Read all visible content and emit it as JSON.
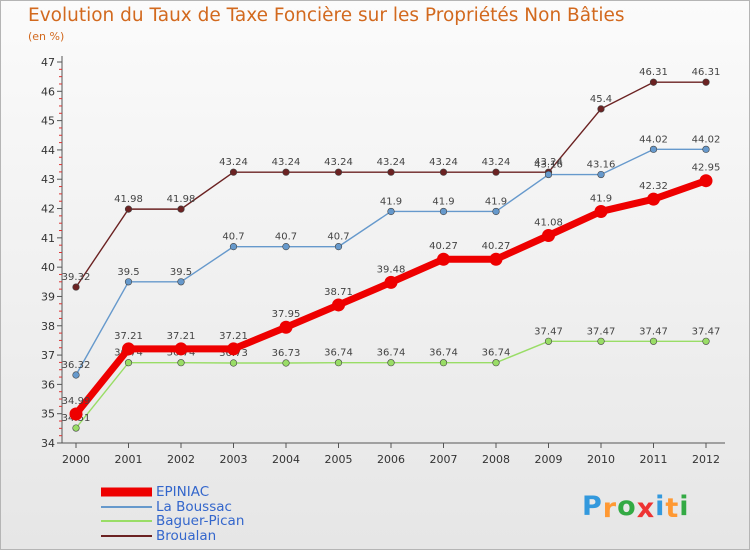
{
  "chart_data": {
    "type": "line",
    "title": "Evolution du Taux de Taxe Foncière sur les Propriétés Non Bâties",
    "subtitle": "(en %)",
    "x": [
      "2000",
      "2001",
      "2002",
      "2003",
      "2004",
      "2005",
      "2006",
      "2007",
      "2008",
      "2009",
      "2010",
      "2011",
      "2012"
    ],
    "ylim": [
      34,
      47
    ],
    "yticks": [
      "34",
      "35",
      "36",
      "37",
      "38",
      "39",
      "40",
      "41",
      "42",
      "43",
      "44",
      "45",
      "46",
      "47"
    ],
    "grid": false,
    "legend_position": "bottom-left",
    "series": [
      {
        "name": "Broualan",
        "color": "#6b2222",
        "values": [
          39.32,
          41.98,
          41.98,
          43.24,
          43.24,
          43.24,
          43.24,
          43.24,
          43.24,
          43.24,
          45.4,
          46.31,
          46.31
        ],
        "labels": [
          "39.32",
          "41.98",
          "41.98",
          "43.24",
          "43.24",
          "43.24",
          "43.24",
          "43.24",
          "43.24",
          "43.24",
          "45.4",
          "46.31",
          "46.31"
        ]
      },
      {
        "name": "La Boussac",
        "color": "#6699cc",
        "values": [
          36.32,
          39.5,
          39.5,
          40.7,
          40.7,
          40.7,
          41.9,
          41.9,
          41.9,
          43.16,
          43.16,
          44.02,
          44.02
        ],
        "labels": [
          "36.32",
          "39.5",
          "39.5",
          "40.7",
          "40.7",
          "40.7",
          "41.9",
          "41.9",
          "41.9",
          "43.16",
          "43.16",
          "44.02",
          "44.02"
        ]
      },
      {
        "name": "Baguer-Pican",
        "color": "#99dd66",
        "values": [
          34.51,
          36.74,
          36.74,
          36.73,
          36.73,
          36.74,
          36.74,
          36.74,
          36.74,
          37.47,
          37.47,
          37.47,
          37.47
        ],
        "labels": [
          "34.51",
          "36.74",
          "36.74",
          "36.73",
          "36.73",
          "36.74",
          "36.74",
          "36.74",
          "36.74",
          "37.47",
          "37.47",
          "37.47",
          "37.47"
        ]
      },
      {
        "name": "EPINIAC",
        "color": "#ee0000",
        "values": [
          34.99,
          37.21,
          37.21,
          37.21,
          37.95,
          38.71,
          39.48,
          40.27,
          40.27,
          41.08,
          41.9,
          42.32,
          42.95
        ],
        "labels": [
          "34.99",
          "37.21",
          "37.21",
          "37.21",
          "37.95",
          "38.71",
          "39.48",
          "40.27",
          "40.27",
          "41.08",
          "41.9",
          "42.32",
          "42.95"
        ]
      }
    ]
  },
  "legend": [
    {
      "label": "EPINIAC",
      "color": "#ee0000"
    },
    {
      "label": "La Boussac",
      "color": "#6699cc"
    },
    {
      "label": "Baguer-Pican",
      "color": "#99dd66"
    },
    {
      "label": "Broualan",
      "color": "#6b2222"
    }
  ],
  "logo": {
    "letters": [
      "P",
      "r",
      "o",
      "x",
      "i",
      "t",
      "i"
    ],
    "colors": [
      "#3399dd",
      "#ff9933",
      "#33aa44",
      "#ee3333",
      "#3399dd",
      "#ff9933",
      "#33aa44"
    ]
  }
}
